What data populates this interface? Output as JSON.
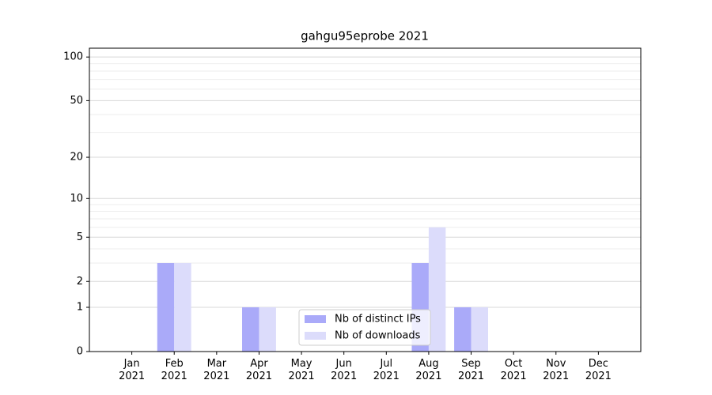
{
  "chart_data": {
    "type": "bar",
    "title": "gahgu95eprobe 2021",
    "categories": [
      "Jan\n2021",
      "Feb\n2021",
      "Mar\n2021",
      "Apr\n2021",
      "May\n2021",
      "Jun\n2021",
      "Jul\n2021",
      "Aug\n2021",
      "Sep\n2021",
      "Oct\n2021",
      "Nov\n2021",
      "Dec\n2021"
    ],
    "series": [
      {
        "name": "Nb of distinct IPs",
        "color": "#aaaaf9",
        "values": [
          0,
          3,
          0,
          1,
          0,
          0,
          0,
          3,
          1,
          0,
          0,
          0
        ]
      },
      {
        "name": "Nb of downloads",
        "color": "#dcdcfb",
        "values": [
          0,
          3,
          0,
          1,
          0,
          0,
          0,
          6,
          1,
          0,
          0,
          0
        ]
      }
    ],
    "yscale": "log1p",
    "ylim": [
      0,
      115
    ],
    "yticks": [
      0,
      1,
      2,
      5,
      10,
      20,
      50,
      100
    ],
    "yminorticks": [
      3,
      4,
      6,
      7,
      8,
      9,
      30,
      40,
      60,
      70,
      80,
      90
    ],
    "grid": true,
    "legend": "lower center"
  }
}
